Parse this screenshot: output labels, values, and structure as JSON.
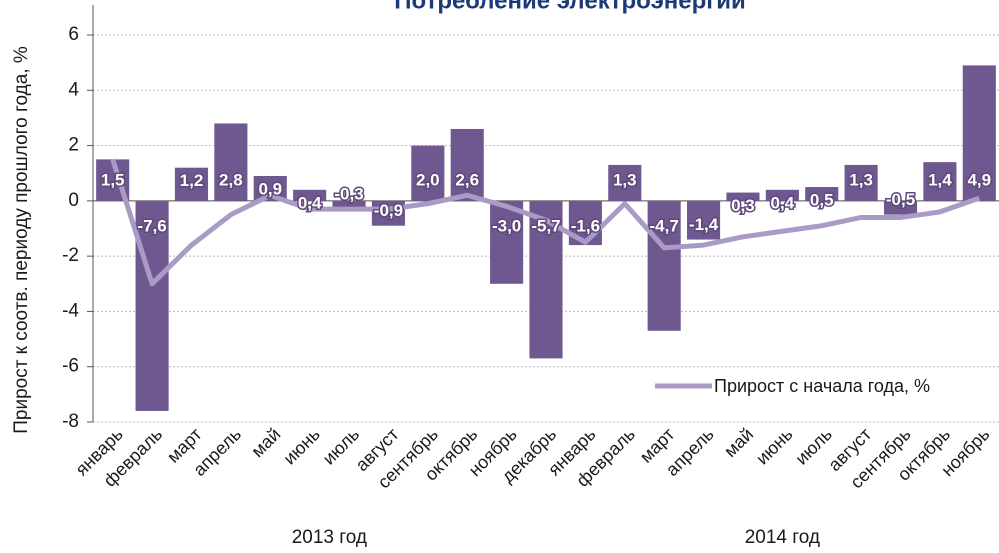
{
  "chart_data": {
    "type": "bar",
    "title": "Потребление электроэнергии",
    "y_label": "Прирост к соотв. периоду прошлого года, %",
    "groups": [
      {
        "label": "2013 год",
        "categories": [
          "январь",
          "февраль",
          "март",
          "апрель",
          "май",
          "июнь",
          "июль",
          "август",
          "сентябрь",
          "октябрь",
          "ноябрь",
          "декабрь"
        ]
      },
      {
        "label": "2014 год",
        "categories": [
          "январь",
          "февраль",
          "март",
          "апрель",
          "май",
          "июнь",
          "июль",
          "август",
          "сентябрь",
          "октябрь",
          "ноябрь"
        ]
      }
    ],
    "values": [
      1.5,
      -7.6,
      1.2,
      2.8,
      0.9,
      0.4,
      -0.3,
      -0.9,
      2.0,
      2.6,
      -3.0,
      -5.7,
      -1.6,
      1.3,
      -4.7,
      -1.4,
      0.3,
      0.4,
      0.5,
      1.3,
      -0.5,
      1.4,
      4.9
    ],
    "value_labels": [
      "1,5",
      "-7,6",
      "1,2",
      "2,8",
      "0,9",
      "0,4",
      "-0,3",
      "-0,9",
      "2,0",
      "2,6",
      "-3,0",
      "-5,7",
      "-1,6",
      "1,3",
      "-4,7",
      "-1,4",
      "0,3",
      "0,4",
      "0,5",
      "1,3",
      "-0,5",
      "1,4",
      "4,9"
    ],
    "color": "#6f578f",
    "series": [
      {
        "name": "Прирост с начала года, %",
        "color": "#a99bc6",
        "values": [
          1.5,
          -3.0,
          -1.6,
          -0.5,
          0.2,
          -0.3,
          -0.3,
          -0.3,
          -0.1,
          0.2,
          -0.2,
          -0.7,
          -1.5,
          -0.1,
          -1.7,
          -1.6,
          -1.3,
          -1.1,
          -0.9,
          -0.6,
          -0.6,
          -0.4,
          0.1
        ]
      }
    ],
    "ylim": [
      -8,
      6
    ],
    "yticks": [
      -8,
      -6,
      -4,
      -2,
      0,
      2,
      4,
      6
    ],
    "grid": true,
    "legend": "lower right"
  }
}
